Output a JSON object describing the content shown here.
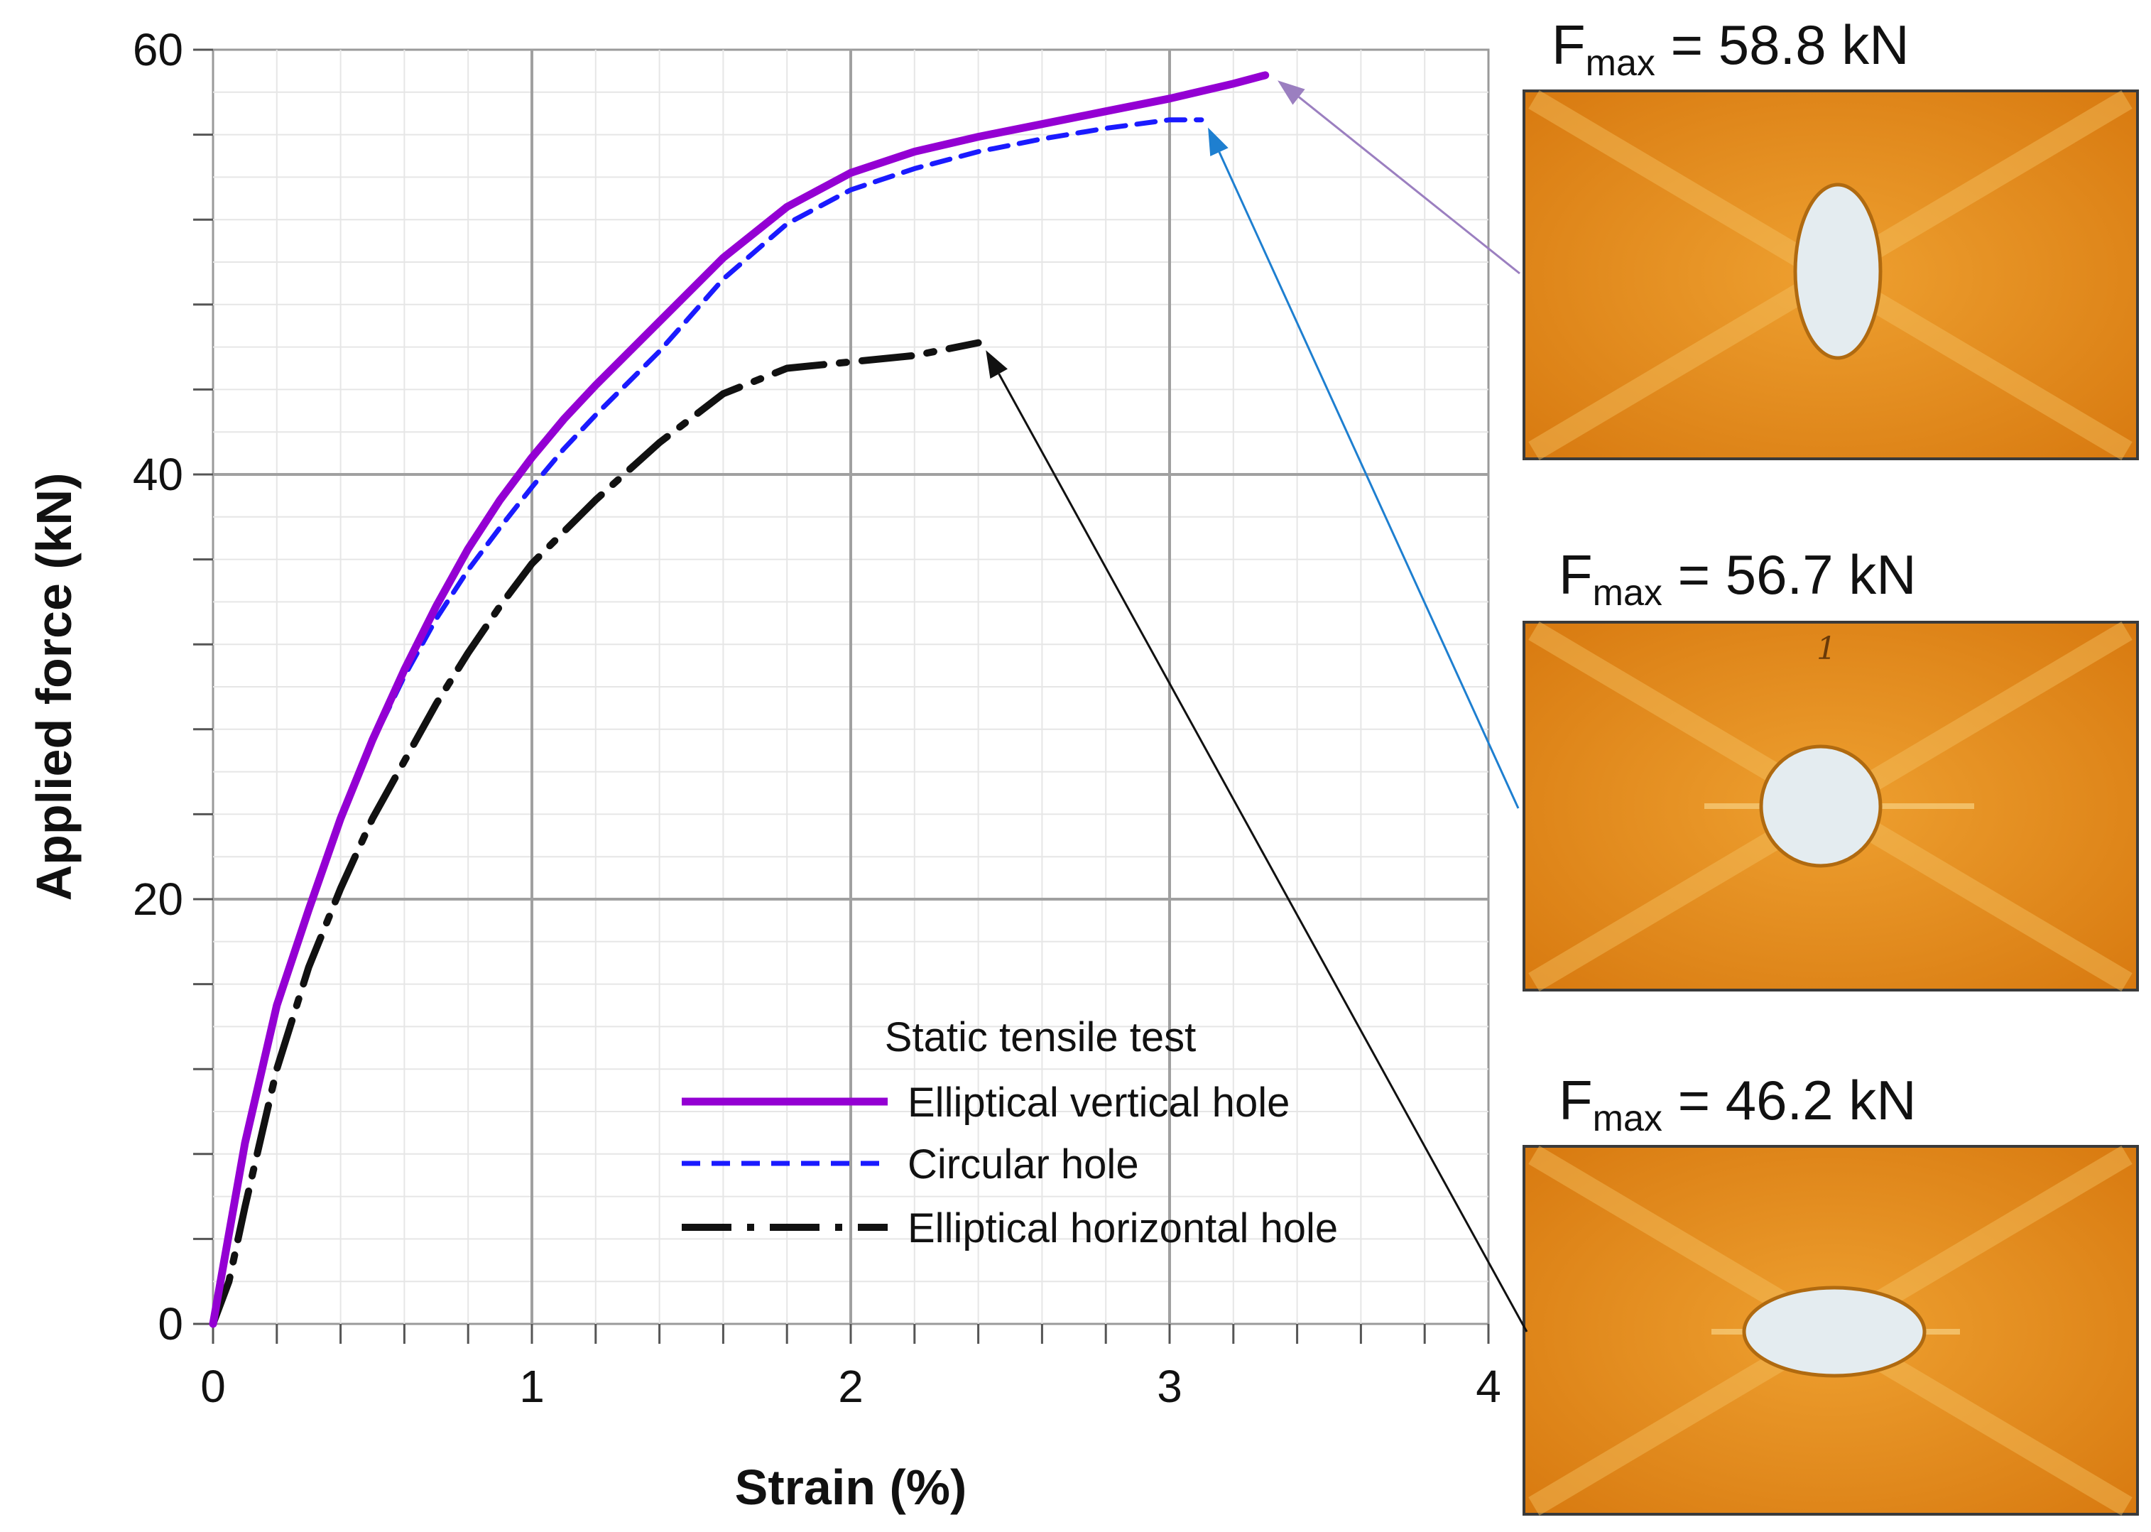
{
  "chart_data": {
    "type": "line",
    "title": "",
    "xlabel": "Strain (%)",
    "ylabel": "Applied force (kN)",
    "xlim": [
      0,
      4
    ],
    "ylim": [
      0,
      60
    ],
    "x_ticks": [
      "0",
      "1",
      "2",
      "3",
      "4"
    ],
    "y_ticks": [
      "0",
      "20",
      "40",
      "60"
    ],
    "grid": true,
    "legend": {
      "title": "Static tensile test",
      "position": "bottom-right"
    },
    "series": [
      {
        "name": "Elliptical vertical hole",
        "color": "#9400d3",
        "style": "solid",
        "x": [
          0,
          0.1,
          0.2,
          0.3,
          0.4,
          0.5,
          0.6,
          0.7,
          0.8,
          0.9,
          1.0,
          1.1,
          1.2,
          1.4,
          1.6,
          1.8,
          2.0,
          2.2,
          2.4,
          2.6,
          2.8,
          3.0,
          3.2,
          3.3
        ],
        "y": [
          0,
          8.5,
          15,
          19.5,
          23.8,
          27.5,
          30.8,
          33.8,
          36.5,
          38.8,
          40.8,
          42.6,
          44.2,
          47.2,
          50.2,
          52.6,
          54.2,
          55.2,
          55.9,
          56.5,
          57.1,
          57.7,
          58.4,
          58.8
        ]
      },
      {
        "name": "Circular hole",
        "color": "#1a1aff",
        "style": "dashed",
        "x": [
          0,
          0.1,
          0.2,
          0.3,
          0.4,
          0.5,
          0.6,
          0.7,
          0.8,
          0.9,
          1.0,
          1.1,
          1.2,
          1.4,
          1.6,
          1.8,
          2.0,
          2.2,
          2.4,
          2.6,
          2.8,
          3.0,
          3.1
        ],
        "y": [
          0,
          8.5,
          15,
          19.5,
          23.8,
          27.4,
          30.5,
          33.2,
          35.5,
          37.5,
          39.4,
          41.2,
          42.8,
          45.8,
          49.2,
          51.8,
          53.4,
          54.4,
          55.2,
          55.8,
          56.3,
          56.7,
          56.7
        ]
      },
      {
        "name": "Elliptical horizontal hole",
        "color": "#111111",
        "style": "dash-dot",
        "x": [
          0,
          0.05,
          0.1,
          0.2,
          0.3,
          0.4,
          0.5,
          0.6,
          0.7,
          0.8,
          0.9,
          1.0,
          1.1,
          1.2,
          1.4,
          1.6,
          1.8,
          2.0,
          2.2,
          2.4
        ],
        "y": [
          0,
          2,
          5.5,
          12,
          16.8,
          20.5,
          23.8,
          26.5,
          29.2,
          31.6,
          33.8,
          35.8,
          37.3,
          38.8,
          41.5,
          43.8,
          45.0,
          45.3,
          45.6,
          46.2
        ]
      }
    ],
    "annotations": [
      {
        "series": "Elliptical vertical hole",
        "label_main": "F",
        "label_sub": "max",
        "label_value": " = 58.8 kN",
        "color": "#9b7fc0"
      },
      {
        "series": "Circular hole",
        "label_main": "F",
        "label_sub": "max",
        "label_value": " = 56.7 kN",
        "color": "#1e7fd0"
      },
      {
        "series": "Elliptical horizontal hole",
        "label_main": "F",
        "label_sub": "max",
        "label_value": " = 46.2 kN",
        "color": "#111111"
      }
    ]
  },
  "photos": [
    {
      "name": "Elliptical vertical hole specimen",
      "hole": "vertical-ellipse",
      "sample_mark": "",
      "plate_color": "#e08a16",
      "hole_color": "#e4ecf0"
    },
    {
      "name": "Circular hole specimen",
      "hole": "circle",
      "sample_mark": "1",
      "plate_color": "#e08a16",
      "hole_color": "#e4ecf0"
    },
    {
      "name": "Elliptical horizontal hole specimen",
      "hole": "horizontal-ellipse",
      "sample_mark": "",
      "plate_color": "#e08a16",
      "hole_color": "#e4ecf0"
    }
  ]
}
